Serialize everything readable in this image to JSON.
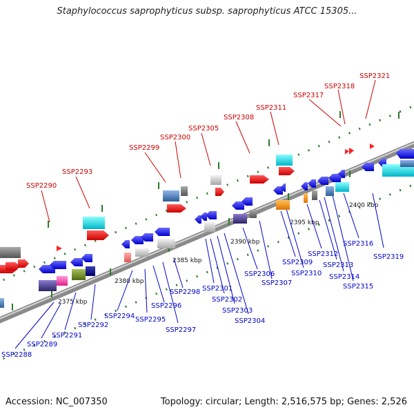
{
  "title": "Staphylococcus saprophyticus subsp. saprophyticus ATCC 15305...",
  "footer": {
    "accession": "Accession: NC_007350",
    "info": "Topology: circular; Length: 2,516,575 bp; Genes: 2,526"
  },
  "scale_labels": [
    "2375 kbp",
    "2380 kbp",
    "2385 kbp",
    "2390 kbp",
    "2395 kbp",
    "2400 kbp"
  ],
  "top_labels": [
    "SSP2290",
    "SSP2293",
    "SSP2299",
    "SSP2300",
    "SSP2305",
    "SSP2308",
    "SSP2311",
    "SSP2317",
    "SSP2318",
    "SSP2321"
  ],
  "bottom_labels": [
    "SSP2288",
    "SSP2289",
    "SSP2291",
    "SSP2292",
    "SSP2294",
    "SSP2295",
    "SSP2296",
    "SSP2297",
    "SSP2298",
    "SSP2301",
    "SSP2302",
    "SSP2303",
    "SSP2304",
    "SSP2306",
    "SSP2307",
    "SSP2309",
    "SSP2310",
    "SSP2312",
    "SSP2313",
    "SSP2314",
    "SSP2315",
    "SSP2316",
    "SSP2319"
  ],
  "colors": {
    "forward_label": "#cc0000",
    "reverse_label": "#0000cc",
    "backbone": "#8a8a8a",
    "tick": "#2a7a2a"
  }
}
